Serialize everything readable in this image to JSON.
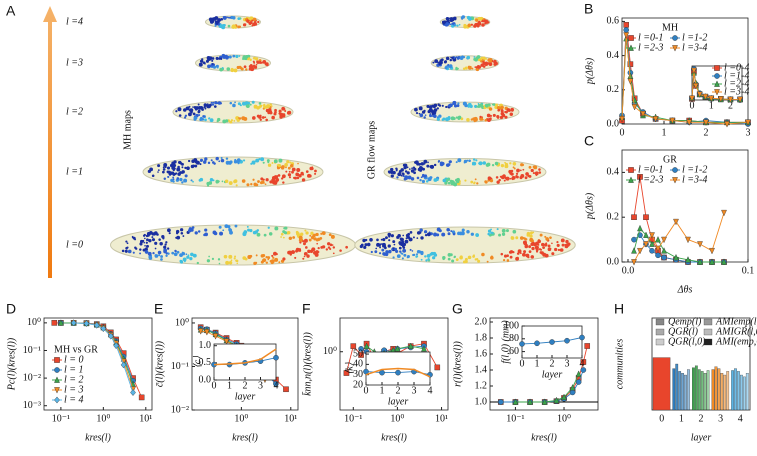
{
  "diagram": {
    "label": "A",
    "levels": [
      "l =4",
      "l =3",
      "l =2",
      "l =1",
      "l =0"
    ],
    "left_title": "MH maps",
    "right_title": "GR flow maps"
  },
  "chart_data": [
    {
      "type": "line",
      "label": "B",
      "title": "MH",
      "xlabel": "",
      "ylabel": "p(Δθs)",
      "xlim": [
        0,
        3
      ],
      "ylim": [
        0,
        0.62
      ],
      "xticks": [
        0,
        1,
        2,
        3
      ],
      "yticks": [
        {
          "value": 0,
          "label": "0.0"
        },
        {
          "value": 0.2,
          "label": "0.2"
        },
        {
          "value": 0.4,
          "label": "0.4"
        },
        {
          "value": 0.6,
          "label": "0.6"
        }
      ],
      "x": [
        0,
        0.1,
        0.2,
        0.3,
        0.5,
        0.8,
        1.2,
        1.6,
        2,
        2.5,
        3
      ],
      "series": [
        {
          "name": "l =0-1",
          "color": "#e8452c",
          "marker": "square",
          "values": [
            0.02,
            0.58,
            0.35,
            0.15,
            0.06,
            0.03,
            0.02,
            0.02,
            0.01,
            0.01,
            0.01
          ]
        },
        {
          "name": "l =1-2",
          "color": "#2f7fc1",
          "marker": "circle",
          "values": [
            0.05,
            0.55,
            0.3,
            0.12,
            0.07,
            0.03,
            0.02,
            0.01,
            0.02,
            0.01,
            0
          ]
        },
        {
          "name": "l =2-3",
          "color": "#3aa34a",
          "marker": "tri-up",
          "values": [
            0.04,
            0.5,
            0.28,
            0.14,
            0.05,
            0.04,
            0.02,
            0.02,
            0.01,
            0.01,
            0.01
          ]
        },
        {
          "name": "l =3-4",
          "color": "#f08a24",
          "marker": "tri-down",
          "values": [
            0.03,
            0.52,
            0.25,
            0.1,
            0.06,
            0.03,
            0.02,
            0.01,
            0.01,
            0,
            0.01
          ]
        }
      ]
    },
    {
      "type": "line",
      "xlim": [
        0,
        2.6
      ],
      "ylim": [
        0,
        0.6
      ],
      "xticks": [
        0,
        1,
        2
      ],
      "x": [
        0,
        0.1,
        0.2,
        0.4,
        0.7,
        1,
        1.5,
        2,
        2.5
      ],
      "series": [
        {
          "name": "l =0-4",
          "color": "#e8452c",
          "marker": "square",
          "values": [
            0.02,
            0.5,
            0.25,
            0.1,
            0.05,
            0.03,
            0.02,
            0.01,
            0.01
          ]
        },
        {
          "name": "l =1-4",
          "color": "#2f7fc1",
          "marker": "circle",
          "values": [
            0.03,
            0.55,
            0.28,
            0.12,
            0.05,
            0.02,
            0.02,
            0.01,
            0
          ]
        },
        {
          "name": "l =2-4",
          "color": "#3aa34a",
          "marker": "tri-up",
          "values": [
            0.04,
            0.48,
            0.3,
            0.1,
            0.06,
            0.03,
            0.01,
            0.01,
            0.01
          ]
        },
        {
          "name": "l =3-4",
          "color": "#f08a24",
          "marker": "tri-down",
          "values": [
            0.03,
            0.52,
            0.25,
            0.1,
            0.06,
            0.03,
            0.02,
            0.01,
            0.01
          ]
        }
      ]
    },
    {
      "type": "line",
      "label": "C",
      "title": "GR",
      "xlabel": "Δθs",
      "ylabel": "p(Δθs)",
      "xlim": [
        -0.005,
        0.1
      ],
      "ylim": [
        0,
        0.5
      ],
      "xticks": [
        {
          "value": 0,
          "label": "0.0"
        },
        0.1
      ],
      "yticks": [
        {
          "value": 0,
          "label": "0.0"
        },
        0.2,
        0.4
      ],
      "x": [
        0.005,
        0.01,
        0.015,
        0.02,
        0.025,
        0.03,
        0.04,
        0.05,
        0.06,
        0.07,
        0.08
      ],
      "series": [
        {
          "name": "l =0-1",
          "color": "#e8452c",
          "marker": "square",
          "values": [
            0.2,
            0.38,
            0.2,
            0.1,
            0.05,
            0.02,
            0.01,
            0,
            0,
            0,
            0
          ]
        },
        {
          "name": "l =1-2",
          "color": "#2f7fc1",
          "marker": "circle",
          "values": [
            0.1,
            0.12,
            0.08,
            0.05,
            0.03,
            0.02,
            0.01,
            0,
            0,
            0,
            0
          ]
        },
        {
          "name": "l =2-3",
          "color": "#3aa34a",
          "marker": "tri-up",
          "values": [
            0.05,
            0.15,
            0.12,
            0.08,
            0.1,
            0.05,
            0.02,
            0.01,
            0,
            0,
            0
          ]
        },
        {
          "name": "l =3-4",
          "color": "#f08a24",
          "marker": "tri-down",
          "values": [
            0,
            0.05,
            0.08,
            0.12,
            0.06,
            0.1,
            0.18,
            0.1,
            0.08,
            0.05,
            0.22
          ]
        }
      ]
    },
    {
      "type": "line",
      "label": "D",
      "title": "MH vs GR",
      "xlabel": "kres(l)",
      "ylabel": "Pc(l)(kres(l))",
      "xlog": true,
      "ylog": true,
      "xlim": [
        0.04,
        14
      ],
      "ylim": [
        0.0007,
        1.5
      ],
      "xticks": [
        {
          "value": 0.1,
          "label": "10⁻¹"
        },
        {
          "value": 1,
          "label": "10⁰"
        },
        {
          "value": 10,
          "label": "10¹"
        }
      ],
      "yticks": [
        {
          "value": 0.001,
          "label": "10⁻³"
        },
        {
          "value": 0.01,
          "label": "10⁻²"
        },
        {
          "value": 0.1,
          "label": "10⁻¹"
        },
        {
          "value": 1,
          "label": "10⁰"
        }
      ],
      "x": [
        0.07,
        0.1,
        0.2,
        0.4,
        0.7,
        1,
        1.5,
        2,
        3,
        5,
        8
      ],
      "series": [
        {
          "name": "l = 0",
          "color": "#e8452c",
          "marker": "square",
          "values": [
            1,
            1,
            1,
            0.98,
            0.9,
            0.75,
            0.45,
            0.25,
            0.08,
            0.01,
            0.002
          ]
        },
        {
          "name": "l = 1",
          "color": "#2f7fc1",
          "marker": "circle",
          "values": [
            null,
            1,
            1,
            0.97,
            0.88,
            0.7,
            0.4,
            0.22,
            0.06,
            0.008,
            null
          ]
        },
        {
          "name": "l = 2",
          "color": "#3aa34a",
          "marker": "tri-up",
          "values": [
            null,
            1,
            1,
            0.96,
            0.85,
            0.68,
            0.38,
            0.2,
            0.05,
            0.006,
            null
          ]
        },
        {
          "name": "l = 3",
          "color": "#f08a24",
          "marker": "tri-down",
          "values": [
            null,
            null,
            1,
            0.96,
            0.84,
            0.65,
            0.36,
            0.18,
            0.04,
            0.004,
            null
          ]
        },
        {
          "name": "l = 4",
          "color": "#5ab4e5",
          "marker": "diamond",
          "values": [
            null,
            null,
            1,
            0.95,
            0.82,
            0.62,
            0.33,
            0.15,
            0.03,
            0.003,
            null
          ]
        }
      ]
    },
    {
      "type": "line",
      "label": "E",
      "xlabel": "kres(l)",
      "ylabel": "c̄(l)(kres(l))",
      "xlog": true,
      "ylog": true,
      "xlim": [
        0.1,
        14
      ],
      "ylim": [
        0.01,
        1.3
      ],
      "xticks": [
        {
          "value": 1,
          "label": "10⁰"
        },
        {
          "value": 10,
          "label": "10¹"
        }
      ],
      "yticks": [
        {
          "value": 0.01,
          "label": "10⁻²"
        },
        {
          "value": 0.1,
          "label": "10⁻¹"
        },
        {
          "value": 1,
          "label": "10⁰"
        }
      ],
      "x": [
        0.15,
        0.2,
        0.3,
        0.5,
        0.8,
        1,
        1.5,
        2,
        3,
        5,
        8
      ],
      "series": [
        {
          "name": "l = 0",
          "color": "#e8452c",
          "marker": "square",
          "values": [
            0.8,
            0.7,
            0.6,
            0.45,
            0.35,
            0.3,
            0.2,
            0.15,
            0.09,
            0.05,
            0.03
          ]
        },
        {
          "name": "l = 1",
          "color": "#2f7fc1",
          "marker": "circle",
          "values": [
            0.75,
            0.72,
            0.58,
            0.42,
            0.33,
            0.28,
            0.18,
            0.12,
            0.07,
            0.04,
            null
          ]
        },
        {
          "name": "l = 2",
          "color": "#3aa34a",
          "marker": "tri-up",
          "values": [
            0.7,
            0.68,
            0.55,
            0.4,
            0.3,
            0.26,
            0.16,
            0.11,
            0.06,
            null,
            null
          ]
        },
        {
          "name": "l = 3",
          "color": "#f08a24",
          "marker": "tri-down",
          "values": [
            0.65,
            0.62,
            0.5,
            0.38,
            0.28,
            0.23,
            0.15,
            0.1,
            0.05,
            null,
            null
          ]
        }
      ]
    },
    {
      "type": "line",
      "xlabel": "layer",
      "ylabel": "⟨c⟩",
      "xlim": [
        0,
        4
      ],
      "ylim": [
        0,
        1.05
      ],
      "xticks": [
        0,
        1,
        2,
        3,
        4
      ],
      "yticks": [
        {
          "value": 0,
          "label": "0.0"
        },
        {
          "value": 0.5,
          "label": "0.5"
        },
        {
          "value": 1,
          "label": "1.0"
        }
      ],
      "x": [
        0,
        1,
        2,
        3,
        4
      ],
      "series": [
        {
          "name": "MH",
          "color": "#2f7fc1",
          "marker": "circle",
          "values": [
            0.45,
            0.45,
            0.5,
            0.55,
            0.65
          ]
        },
        {
          "name": "GR",
          "color": "#f08a24",
          "marker": "none",
          "values": [
            0.45,
            0.47,
            0.5,
            0.6,
            0.9
          ]
        }
      ]
    },
    {
      "type": "line",
      "label": "F",
      "xlabel": "kres(l)",
      "ylabel": "k̄nn,n(l)(kres(l))",
      "xlog": true,
      "ylog": true,
      "xlim": [
        0.05,
        14
      ],
      "ylim": [
        0.15,
        3
      ],
      "xticks": [
        {
          "value": 0.1,
          "label": "10⁻¹"
        },
        {
          "value": 1,
          "label": "10⁰"
        },
        {
          "value": 10,
          "label": "10¹"
        }
      ],
      "yticks": [
        {
          "value": 1,
          "label": "10⁰"
        }
      ],
      "x": [
        0.07,
        0.1,
        0.15,
        0.2,
        0.3,
        0.5,
        0.8,
        1,
        2,
        4,
        8
      ],
      "series": [
        {
          "name": "l = 0",
          "color": "#e8452c",
          "marker": "square",
          "values": [
            0.5,
            1.2,
            0.9,
            1.3,
            0.8,
            1,
            1.1,
            0.95,
            1.2,
            1.3,
            0.6
          ]
        },
        {
          "name": "l = 1",
          "color": "#2f7fc1",
          "marker": "circle",
          "values": [
            null,
            null,
            1.1,
            1,
            0.9,
            1.05,
            1,
            1.1,
            1.15,
            1.2,
            null
          ]
        },
        {
          "name": "l = 2",
          "color": "#3aa34a",
          "marker": "tri-up",
          "values": [
            null,
            null,
            null,
            1.2,
            1,
            0.95,
            1.05,
            1.1,
            1.2,
            1.1,
            null
          ]
        }
      ]
    },
    {
      "type": "line",
      "xlabel": "layer",
      "ylabel": "⟨k⟩",
      "xlim": [
        0,
        4
      ],
      "ylim": [
        20,
        52
      ],
      "xticks": [
        0,
        1,
        2,
        3,
        4
      ],
      "yticks": [
        20,
        30,
        40,
        50
      ],
      "x": [
        0,
        1,
        2,
        3,
        4
      ],
      "series": [
        {
          "name": "MH",
          "color": "#2f7fc1",
          "marker": "circle",
          "values": [
            33,
            32,
            32,
            33,
            30
          ]
        },
        {
          "name": "GR",
          "color": "#f08a24",
          "marker": "none",
          "values": [
            30,
            35,
            36,
            35,
            28
          ]
        }
      ]
    },
    {
      "type": "line",
      "label": "G",
      "xlabel": "kres(l)",
      "ylabel": "r(l)(kres(l))",
      "xlog": true,
      "xlim": [
        0.03,
        5
      ],
      "ylim": [
        0.9,
        2.05
      ],
      "xticks": [
        {
          "value": 0.1,
          "label": "10⁻¹"
        },
        {
          "value": 1,
          "label": "10⁰"
        }
      ],
      "yticks": [
        {
          "value": 1,
          "label": "1.0"
        },
        {
          "value": 1.2,
          "label": "1.2"
        },
        {
          "value": 1.4,
          "label": "1.4"
        },
        {
          "value": 1.6,
          "label": "1.6"
        },
        {
          "value": 1.8,
          "label": "1.8"
        },
        {
          "value": 2,
          "label": "2.0"
        }
      ],
      "hline": 1,
      "x": [
        0.05,
        0.1,
        0.2,
        0.4,
        0.7,
        1,
        1.5,
        2,
        2.5,
        3
      ],
      "series": [
        {
          "name": "l = 0",
          "color": "#e8452c",
          "marker": "square",
          "values": [
            1,
            1,
            1,
            1,
            1.01,
            1.05,
            1.15,
            1.3,
            1.5,
            1.7
          ]
        },
        {
          "name": "l = 1",
          "color": "#2f7fc1",
          "marker": "circle",
          "values": [
            1,
            1,
            1,
            1,
            1.01,
            1.04,
            1.12,
            1.25,
            1.4,
            null
          ]
        },
        {
          "name": "l = 2",
          "color": "#3aa34a",
          "marker": "tri-up",
          "values": [
            null,
            1,
            1,
            1,
            1.02,
            1.06,
            1.18,
            1.35,
            null,
            null
          ]
        }
      ]
    },
    {
      "type": "line",
      "xlabel": "layer",
      "ylabel": "f(l,0) (mm)",
      "xlim": [
        0,
        4
      ],
      "ylim": [
        50,
        100
      ],
      "xticks": [
        0,
        1,
        2,
        3,
        4
      ],
      "yticks": [
        60,
        80,
        100
      ],
      "x": [
        0,
        1,
        2,
        3,
        4
      ],
      "series": [
        {
          "name": "f",
          "color": "#2f7fc1",
          "marker": "circle",
          "values": [
            72,
            73,
            75,
            77,
            82
          ]
        }
      ]
    },
    {
      "type": "bar",
      "label": "H",
      "xlabel": "layer",
      "ylabel": "communities",
      "ylim": [
        0,
        1
      ],
      "categories": [
        "0",
        "1",
        "2",
        "3",
        "4"
      ],
      "colors": [
        "#e8452c",
        "#2f7fc1",
        "#3aa34a",
        "#f08a24",
        "#5ab4e5"
      ],
      "series": [
        {
          "name": "Qemp(l)",
          "color": "#888",
          "values": [
            0.57,
            0.45,
            0.46,
            0.44,
            0.43
          ]
        },
        {
          "name": "AMIemp(l,0)",
          "color": "#999",
          "values": [
            null,
            0.5,
            0.48,
            0.47,
            0.45
          ]
        },
        {
          "name": "QGR(l)",
          "color": "#aaa",
          "values": [
            null,
            0.42,
            0.44,
            0.45,
            0.42
          ]
        },
        {
          "name": "AMIGR(l,0)",
          "color": "#bbb",
          "values": [
            null,
            0.4,
            0.42,
            0.4,
            0.38
          ]
        },
        {
          "name": "QGR(l,0)",
          "color": "#ccc",
          "values": [
            null,
            0.38,
            0.4,
            0.38,
            0.36
          ]
        },
        {
          "name": "AMI(emp,GR)",
          "color": "#222",
          "values": [
            null,
            0.44,
            0.43,
            0.42,
            0.4
          ]
        }
      ]
    }
  ]
}
